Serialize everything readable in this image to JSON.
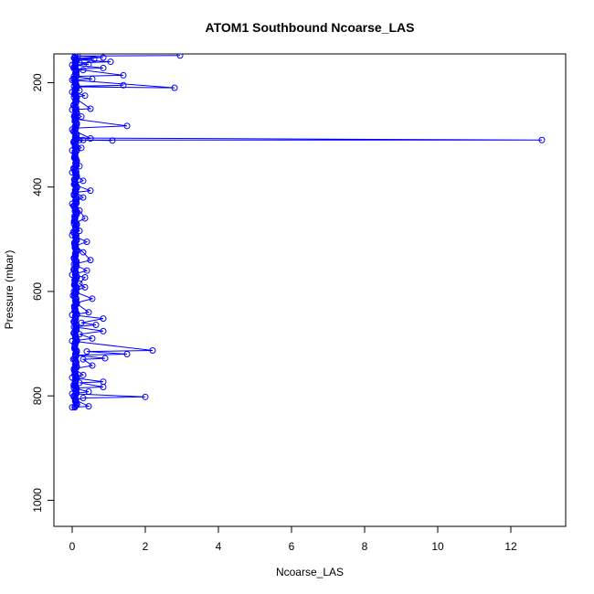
{
  "chart_data": {
    "type": "line",
    "title": "ATOM1 Southbound Ncoarse_LAS",
    "xlabel": "Ncoarse_LAS",
    "ylabel": "Pressure (mbar)",
    "xlim": [
      -0.5,
      13.5
    ],
    "ylim": [
      1050,
      145
    ],
    "y_reversed": true,
    "grid": false,
    "x_ticks": [
      0,
      2,
      4,
      6,
      8,
      10,
      12
    ],
    "y_ticks": [
      200,
      400,
      600,
      800,
      1000
    ],
    "colors": {
      "series": "#0000ff",
      "axis": "#000000"
    },
    "series": [
      {
        "marker": "open-circle",
        "line": true,
        "points": [
          [
            2.95,
            148
          ],
          [
            0.15,
            149
          ],
          [
            0.85,
            152
          ],
          [
            0.05,
            153
          ],
          [
            0.6,
            155
          ],
          [
            0.1,
            156
          ],
          [
            1.05,
            160
          ],
          [
            0.2,
            162
          ],
          [
            0.45,
            165
          ],
          [
            0.0,
            166
          ],
          [
            0.85,
            172
          ],
          [
            0.1,
            174
          ],
          [
            0.3,
            176
          ],
          [
            1.4,
            186
          ],
          [
            0.05,
            188
          ],
          [
            0.55,
            193
          ],
          [
            0.0,
            195
          ],
          [
            2.8,
            210
          ],
          [
            0.1,
            208
          ],
          [
            1.4,
            205
          ],
          [
            0.05,
            207
          ],
          [
            0.2,
            215
          ],
          [
            0.0,
            218
          ],
          [
            0.35,
            225
          ],
          [
            0.05,
            228
          ],
          [
            0.5,
            250
          ],
          [
            0.0,
            252
          ],
          [
            0.25,
            265
          ],
          [
            0.1,
            270
          ],
          [
            1.5,
            283
          ],
          [
            0.1,
            287
          ],
          [
            0.0,
            290
          ],
          [
            0.5,
            307
          ],
          [
            0.1,
            306
          ],
          [
            12.85,
            310
          ],
          [
            0.2,
            310
          ],
          [
            1.1,
            311
          ],
          [
            0.3,
            310
          ],
          [
            0.05,
            312
          ],
          [
            0.25,
            325
          ],
          [
            0.0,
            330
          ],
          [
            0.1,
            345
          ],
          [
            0.2,
            360
          ],
          [
            0.0,
            372
          ],
          [
            0.3,
            388
          ],
          [
            0.05,
            395
          ],
          [
            0.5,
            407
          ],
          [
            0.1,
            410
          ],
          [
            0.3,
            420
          ],
          [
            0.0,
            432
          ],
          [
            0.2,
            445
          ],
          [
            0.35,
            460
          ],
          [
            0.05,
            470
          ],
          [
            0.2,
            484
          ],
          [
            0.0,
            492
          ],
          [
            0.4,
            505
          ],
          [
            0.1,
            512
          ],
          [
            0.3,
            525
          ],
          [
            0.5,
            540
          ],
          [
            0.05,
            548
          ],
          [
            0.4,
            560
          ],
          [
            0.0,
            568
          ],
          [
            0.35,
            573
          ],
          [
            0.2,
            585
          ],
          [
            0.35,
            592
          ],
          [
            0.05,
            600
          ],
          [
            0.55,
            614
          ],
          [
            0.1,
            622
          ],
          [
            0.45,
            640
          ],
          [
            0.0,
            645
          ],
          [
            0.85,
            652
          ],
          [
            0.25,
            660
          ],
          [
            0.65,
            664
          ],
          [
            0.05,
            668
          ],
          [
            0.85,
            676
          ],
          [
            0.2,
            682
          ],
          [
            0.55,
            690
          ],
          [
            0.0,
            695
          ],
          [
            2.2,
            713
          ],
          [
            0.4,
            715
          ],
          [
            1.5,
            720
          ],
          [
            0.1,
            722
          ],
          [
            0.9,
            728
          ],
          [
            0.3,
            730
          ],
          [
            0.55,
            742
          ],
          [
            0.05,
            748
          ],
          [
            0.3,
            760
          ],
          [
            0.0,
            765
          ],
          [
            0.85,
            773
          ],
          [
            0.2,
            775
          ],
          [
            0.85,
            783
          ],
          [
            0.05,
            785
          ],
          [
            0.45,
            792
          ],
          [
            0.0,
            796
          ],
          [
            2.0,
            802
          ],
          [
            0.3,
            804
          ],
          [
            0.1,
            808
          ],
          [
            0.45,
            820
          ],
          [
            0.0,
            822
          ]
        ]
      }
    ]
  }
}
